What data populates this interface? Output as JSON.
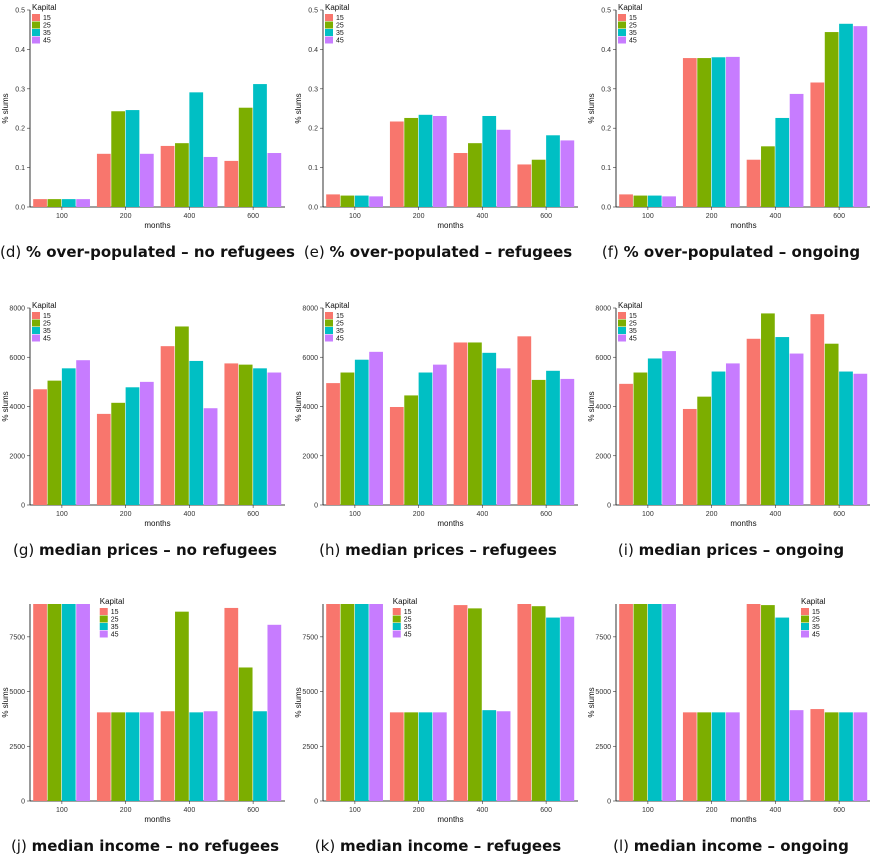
{
  "figure": {
    "colors": [
      "#F8766D",
      "#7CAE00",
      "#00BFC4",
      "#C77CFF"
    ],
    "legend_title": "Kapital",
    "legend_labels": [
      "15",
      "25",
      "35",
      "45"
    ]
  },
  "chart_data": [
    {
      "id": "d",
      "type": "bar",
      "title": "",
      "caption_prefix": "(d)",
      "caption_bold": "% over-populated – no refugees",
      "xlabel": "months",
      "ylabel": "% slums",
      "categories": [
        "100",
        "200",
        "400",
        "600"
      ],
      "ylim": [
        0,
        0.5
      ],
      "yticks": [
        0.0,
        0.1,
        0.2,
        0.3,
        0.4,
        0.5
      ],
      "ytick_labels": [
        "0.0",
        "0.1",
        "0.2",
        "0.3",
        "0.4",
        "0.5"
      ],
      "legend_position": "top-left",
      "series": [
        {
          "name": "15",
          "values": [
            0.02,
            0.135,
            0.155,
            0.117
          ]
        },
        {
          "name": "25",
          "values": [
            0.02,
            0.243,
            0.162,
            0.252
          ]
        },
        {
          "name": "35",
          "values": [
            0.02,
            0.246,
            0.291,
            0.312
          ]
        },
        {
          "name": "45",
          "values": [
            0.02,
            0.135,
            0.127,
            0.137
          ]
        }
      ]
    },
    {
      "id": "e",
      "type": "bar",
      "title": "",
      "caption_prefix": "(e)",
      "caption_bold": "% over-populated – refugees",
      "xlabel": "months",
      "ylabel": "% slums",
      "categories": [
        "100",
        "200",
        "400",
        "600"
      ],
      "ylim": [
        0,
        0.5
      ],
      "yticks": [
        0.0,
        0.1,
        0.2,
        0.3,
        0.4,
        0.5
      ],
      "ytick_labels": [
        "0.0",
        "0.1",
        "0.2",
        "0.3",
        "0.4",
        "0.5"
      ],
      "legend_position": "top-left",
      "series": [
        {
          "name": "15",
          "values": [
            0.032,
            0.217,
            0.137,
            0.108
          ]
        },
        {
          "name": "25",
          "values": [
            0.029,
            0.226,
            0.162,
            0.12
          ]
        },
        {
          "name": "35",
          "values": [
            0.029,
            0.234,
            0.231,
            0.182
          ]
        },
        {
          "name": "45",
          "values": [
            0.027,
            0.231,
            0.196,
            0.169
          ]
        }
      ]
    },
    {
      "id": "f",
      "type": "bar",
      "title": "",
      "caption_prefix": "(f)",
      "caption_bold": "% over-populated – ongoing",
      "xlabel": "months",
      "ylabel": "% slums",
      "categories": [
        "100",
        "200",
        "400",
        "600"
      ],
      "ylim": [
        0,
        0.5
      ],
      "yticks": [
        0.0,
        0.1,
        0.2,
        0.3,
        0.4,
        0.5
      ],
      "ytick_labels": [
        "0.0",
        "0.1",
        "0.2",
        "0.3",
        "0.4",
        "0.5"
      ],
      "legend_position": "top-left",
      "series": [
        {
          "name": "15",
          "values": [
            0.032,
            0.378,
            0.12,
            0.316
          ]
        },
        {
          "name": "25",
          "values": [
            0.029,
            0.378,
            0.154,
            0.444
          ]
        },
        {
          "name": "35",
          "values": [
            0.029,
            0.38,
            0.226,
            0.465
          ]
        },
        {
          "name": "45",
          "values": [
            0.027,
            0.381,
            0.287,
            0.459
          ]
        }
      ]
    },
    {
      "id": "g",
      "type": "bar",
      "title": "",
      "caption_prefix": "(g)",
      "caption_bold": "median prices – no refugees",
      "xlabel": "months",
      "ylabel": "% slums",
      "categories": [
        "100",
        "200",
        "400",
        "600"
      ],
      "ylim": [
        0,
        8000
      ],
      "yticks": [
        0,
        2000,
        4000,
        6000,
        8000
      ],
      "ytick_labels": [
        "0",
        "2000",
        "4000",
        "6000",
        "8000"
      ],
      "legend_position": "top-left",
      "series": [
        {
          "name": "15",
          "values": [
            4700,
            3700,
            6450,
            5750
          ]
        },
        {
          "name": "25",
          "values": [
            5050,
            4150,
            7250,
            5700
          ]
        },
        {
          "name": "35",
          "values": [
            5550,
            4780,
            5850,
            5550
          ]
        },
        {
          "name": "45",
          "values": [
            5880,
            5000,
            3930,
            5380
          ]
        }
      ]
    },
    {
      "id": "h",
      "type": "bar",
      "title": "",
      "caption_prefix": "(h)",
      "caption_bold": "median prices – refugees",
      "xlabel": "months",
      "ylabel": "% slums",
      "categories": [
        "100",
        "200",
        "400",
        "600"
      ],
      "ylim": [
        0,
        8000
      ],
      "yticks": [
        0,
        2000,
        4000,
        6000,
        8000
      ],
      "ytick_labels": [
        "0",
        "2000",
        "4000",
        "6000",
        "8000"
      ],
      "legend_position": "top-left",
      "series": [
        {
          "name": "15",
          "values": [
            4950,
            3980,
            6600,
            6850
          ]
        },
        {
          "name": "25",
          "values": [
            5380,
            4450,
            6600,
            5080
          ]
        },
        {
          "name": "35",
          "values": [
            5900,
            5380,
            6180,
            5450
          ]
        },
        {
          "name": "45",
          "values": [
            6220,
            5700,
            5550,
            5120
          ]
        }
      ]
    },
    {
      "id": "i",
      "type": "bar",
      "title": "",
      "caption_prefix": "(i)",
      "caption_bold": "median prices – ongoing",
      "xlabel": "months",
      "ylabel": "% slums",
      "categories": [
        "100",
        "200",
        "400",
        "600"
      ],
      "ylim": [
        0,
        8000
      ],
      "yticks": [
        0,
        2000,
        4000,
        6000,
        8000
      ],
      "ytick_labels": [
        "0",
        "2000",
        "4000",
        "6000",
        "8000"
      ],
      "legend_position": "top-left",
      "series": [
        {
          "name": "15",
          "values": [
            4920,
            3900,
            6750,
            7750
          ]
        },
        {
          "name": "25",
          "values": [
            5380,
            4400,
            7780,
            6550
          ]
        },
        {
          "name": "35",
          "values": [
            5950,
            5420,
            6820,
            5420
          ]
        },
        {
          "name": "45",
          "values": [
            6250,
            5750,
            6150,
            5330
          ]
        }
      ]
    },
    {
      "id": "j",
      "type": "bar",
      "title": "",
      "caption_prefix": "(j)",
      "caption_bold": "median income – no refugees",
      "xlabel": "months",
      "ylabel": "% slums",
      "categories": [
        "100",
        "200",
        "400",
        "600"
      ],
      "ylim": [
        0,
        9000
      ],
      "yticks": [
        0,
        2500,
        5000,
        7500
      ],
      "ytick_labels": [
        "0",
        "2500",
        "5000",
        "7500"
      ],
      "legend_position": "top-center",
      "series": [
        {
          "name": "15",
          "values": [
            9000,
            4050,
            4100,
            8820
          ]
        },
        {
          "name": "25",
          "values": [
            9000,
            4050,
            8650,
            6100
          ]
        },
        {
          "name": "35",
          "values": [
            9000,
            4050,
            4050,
            4100
          ]
        },
        {
          "name": "45",
          "values": [
            9000,
            4050,
            4100,
            8050
          ]
        }
      ]
    },
    {
      "id": "k",
      "type": "bar",
      "title": "",
      "caption_prefix": "(k)",
      "caption_bold": "median income – refugees",
      "xlabel": "months",
      "ylabel": "% slums",
      "categories": [
        "100",
        "200",
        "400",
        "600"
      ],
      "ylim": [
        0,
        9000
      ],
      "yticks": [
        0,
        2500,
        5000,
        7500
      ],
      "ytick_labels": [
        "0",
        "2500",
        "5000",
        "7500"
      ],
      "legend_position": "top-center",
      "series": [
        {
          "name": "15",
          "values": [
            9000,
            4050,
            8950,
            9000
          ]
        },
        {
          "name": "25",
          "values": [
            9000,
            4050,
            8800,
            8900
          ]
        },
        {
          "name": "35",
          "values": [
            9000,
            4050,
            4150,
            8380
          ]
        },
        {
          "name": "45",
          "values": [
            9000,
            4050,
            4100,
            8420
          ]
        }
      ]
    },
    {
      "id": "l",
      "type": "bar",
      "title": "",
      "caption_prefix": "(l)",
      "caption_bold": "median income – ongoing",
      "xlabel": "months",
      "ylabel": "% slums",
      "categories": [
        "100",
        "200",
        "400",
        "600"
      ],
      "ylim": [
        0,
        9000
      ],
      "yticks": [
        0,
        2500,
        5000,
        7500
      ],
      "ytick_labels": [
        "0",
        "2500",
        "5000",
        "7500"
      ],
      "legend_position": "top-right",
      "series": [
        {
          "name": "15",
          "values": [
            9000,
            4050,
            9000,
            4200
          ]
        },
        {
          "name": "25",
          "values": [
            9000,
            4050,
            8950,
            4050
          ]
        },
        {
          "name": "35",
          "values": [
            9000,
            4050,
            8380,
            4050
          ]
        },
        {
          "name": "45",
          "values": [
            9000,
            4050,
            4150,
            4050
          ]
        }
      ]
    }
  ]
}
